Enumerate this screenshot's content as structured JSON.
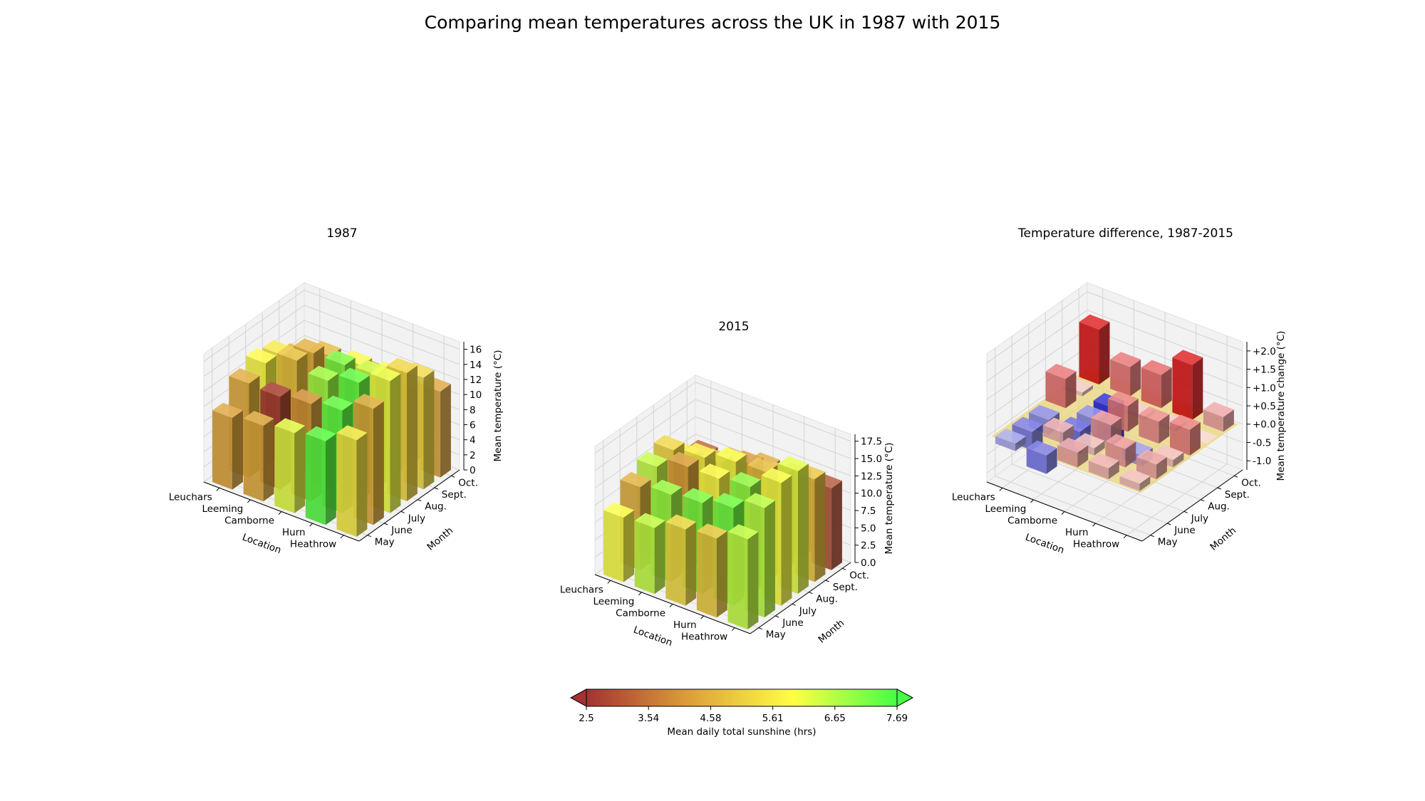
{
  "title": "Comparing mean temperatures across the UK in 1987 with 2015",
  "colors": {
    "pane": "#f2f2f2",
    "grid": "#d4d4d4",
    "warm": "#dd1111",
    "cool": "#2222dd",
    "base": "#e9d57a"
  },
  "chart_data": [
    {
      "type": "bar3d",
      "title": "1987",
      "xlabel": "Location",
      "ylabel": "Month",
      "zlabel": "Mean temperature (°C)",
      "x_ticks": [
        "Leuchars",
        "Leeming",
        "Camborne",
        "Hurn",
        "Heathrow"
      ],
      "y_ticks": [
        "May",
        "June",
        "July",
        "Aug.",
        "Sept.",
        "Oct."
      ],
      "z_ticks": [
        "0",
        "2",
        "4",
        "6",
        "8",
        "10",
        "12",
        "14",
        "16"
      ],
      "zlim": [
        0,
        17
      ],
      "values": [
        [
          9.5,
          12.5,
          13.6,
          13.1,
          11.1,
          8.3
        ],
        [
          10.0,
          12.3,
          15.5,
          14.9,
          13.0,
          9.6
        ],
        [
          10.6,
          12.9,
          14.4,
          14.9,
          13.3,
          10.5
        ],
        [
          11.1,
          13.6,
          15.7,
          15.2,
          13.4,
          10.2
        ],
        [
          12.8,
          15.4,
          17.5,
          17.0,
          14.8,
          11.4
        ]
      ],
      "sunshine": [
        [
          4.3,
          4.4,
          5.9,
          5.6,
          4.5,
          3.6
        ],
        [
          4.4,
          2.6,
          4.9,
          4.5,
          4.7,
          3.8
        ],
        [
          6.2,
          4.0,
          6.8,
          7.2,
          5.9,
          4.4
        ],
        [
          7.5,
          7.4,
          7.4,
          6.4,
          5.9,
          4.2
        ],
        [
          5.6,
          4.4,
          6.1,
          5.2,
          5.3,
          4.3
        ]
      ]
    },
    {
      "type": "bar3d",
      "title": "2015",
      "xlabel": "Location",
      "ylabel": "Month",
      "zlabel": "Mean temperature (°C)",
      "x_ticks": [
        "Leuchars",
        "Leeming",
        "Camborne",
        "Hurn",
        "Heathrow"
      ],
      "y_ticks": [
        "May",
        "June",
        "July",
        "Aug.",
        "Sept.",
        "Oct."
      ],
      "z_ticks": [
        "0.0",
        "2.5",
        "5.0",
        "7.5",
        "10.0",
        "12.5",
        "15.0",
        "17.5"
      ],
      "zlim": [
        0,
        18.5
      ],
      "values": [
        [
          9.3,
          12.0,
          13.2,
          13.9,
          11.2,
          9.8
        ],
        [
          9.5,
          12.6,
          14.9,
          14.5,
          12.0,
          10.4
        ],
        [
          11.0,
          13.1,
          14.9,
          15.6,
          13.4,
          11.4
        ],
        [
          11.4,
          14.1,
          15.4,
          15.8,
          13.5,
          11.7
        ],
        [
          13.0,
          15.8,
          17.7,
          17.7,
          14.8,
          11.8
        ]
      ],
      "sunshine": [
        [
          6.0,
          4.5,
          6.5,
          5.2,
          5.6,
          3.2
        ],
        [
          6.5,
          6.9,
          4.2,
          5.7,
          4.8,
          3.9
        ],
        [
          5.3,
          7.2,
          5.9,
          6.0,
          4.1,
          4.4
        ],
        [
          5.0,
          7.3,
          7.0,
          4.8,
          5.0,
          3.6
        ],
        [
          6.5,
          6.6,
          6.0,
          6.2,
          4.9,
          3.0
        ]
      ]
    },
    {
      "type": "bar3d",
      "title": "Temperature difference, 1987-2015",
      "xlabel": "Location",
      "ylabel": "Month",
      "zlabel": "Mean temperature change (°C)",
      "x_ticks": [
        "Leuchars",
        "Leeming",
        "Camborne",
        "Hurn",
        "Heathrow"
      ],
      "y_ticks": [
        "May",
        "June",
        "July",
        "Aug.",
        "Sept.",
        "Oct."
      ],
      "z_ticks": [
        "-1.0",
        "-0.5",
        "+0.0",
        "+0.5",
        "+1.0",
        "+1.5",
        "+2.0"
      ],
      "zlim": [
        -1.25,
        2.25
      ],
      "values": [
        [
          -0.2,
          -0.5,
          -0.4,
          0.8,
          0.1,
          1.5
        ],
        [
          -0.5,
          0.3,
          -0.6,
          -0.4,
          -1.0,
          0.8
        ],
        [
          0.4,
          0.2,
          0.5,
          0.7,
          0.1,
          0.9
        ],
        [
          0.3,
          0.5,
          -0.3,
          0.6,
          0.1,
          1.5
        ],
        [
          0.2,
          0.4,
          0.2,
          0.7,
          0.0,
          0.4
        ]
      ]
    }
  ],
  "colorbar": {
    "label": "Mean daily total sunshine (hrs)",
    "ticks": [
      "2.5",
      "3.54",
      "4.58",
      "5.61",
      "6.65",
      "7.69"
    ],
    "range": [
      2.5,
      7.69
    ],
    "stops": [
      "#a33232",
      "#dda03a",
      "#ffff44",
      "#44ff44"
    ]
  }
}
